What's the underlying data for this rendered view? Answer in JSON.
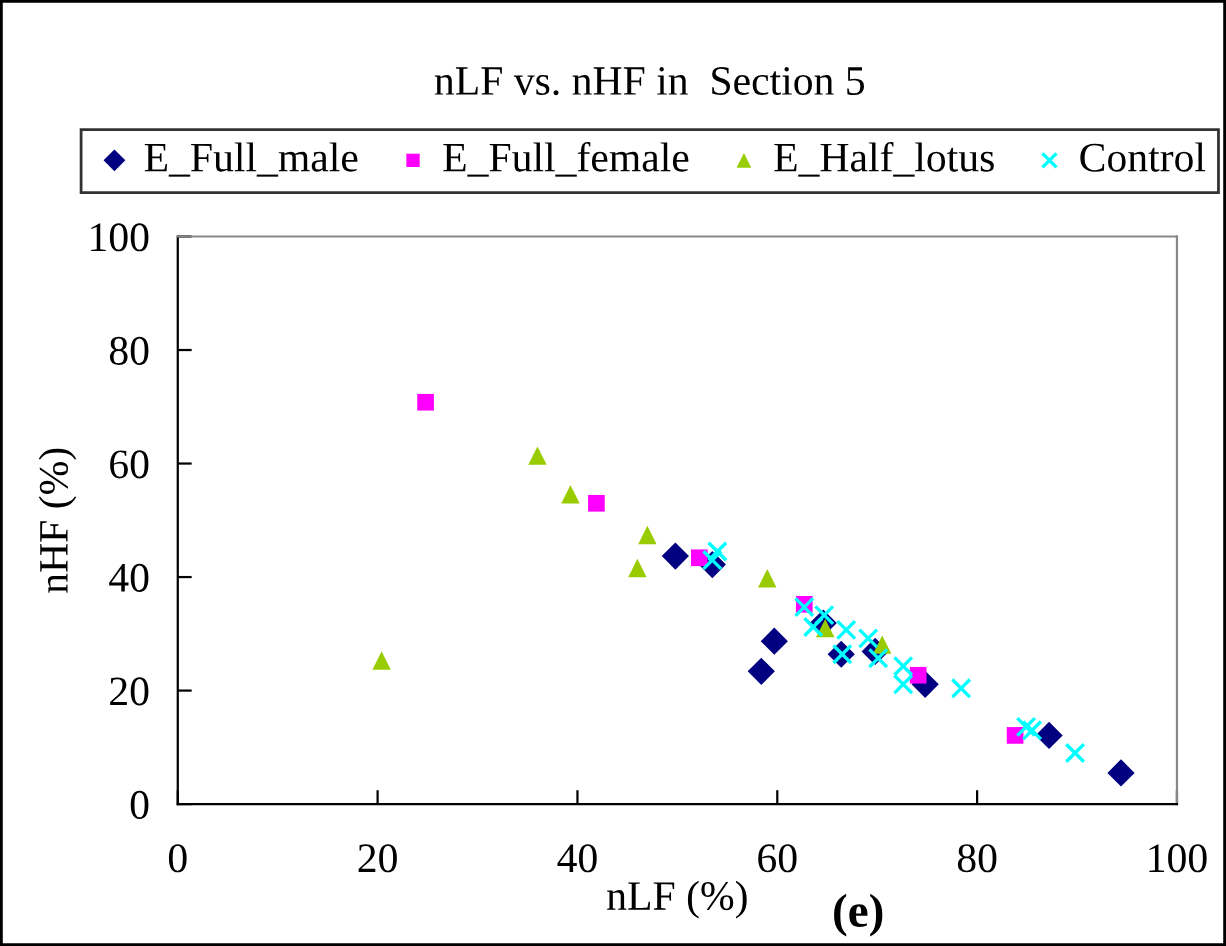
{
  "chart_data": {
    "type": "scatter",
    "title": "nLF vs. nHF in  Section 5",
    "xlabel": "nLF (%)",
    "ylabel": "nHF (%)",
    "annotations": [
      "(e)"
    ],
    "xlim": [
      0,
      100
    ],
    "ylim": [
      0,
      100
    ],
    "xticks": [
      0,
      20,
      40,
      60,
      80,
      100
    ],
    "yticks": [
      0,
      20,
      40,
      60,
      80,
      100
    ],
    "grid": false,
    "legend": "top",
    "series": [
      {
        "name": "E_Full_male",
        "color": "#000080",
        "marker": "diamond",
        "x": [
          49.8,
          53.5,
          59.7,
          58.4,
          64.6,
          66.4,
          69.8,
          74.8,
          87.2,
          94.4
        ],
        "values": [
          43.7,
          42.2,
          28.7,
          23.4,
          31.9,
          26.4,
          26.9,
          21.1,
          12.1,
          5.5
        ]
      },
      {
        "name": "E_Full_female",
        "color": "#ff00ff",
        "marker": "square",
        "x": [
          24.8,
          41.9,
          52.2,
          62.7,
          74.1,
          83.8
        ],
        "values": [
          70.8,
          53.0,
          43.4,
          35.2,
          22.7,
          12.1
        ]
      },
      {
        "name": "E_Half_lotus",
        "color": "#99cc00",
        "marker": "triangle",
        "x": [
          20.4,
          36.0,
          39.3,
          47.0,
          46.0,
          59.0,
          64.8,
          70.5
        ],
        "values": [
          25.3,
          61.4,
          54.6,
          47.4,
          41.6,
          39.8,
          31.0,
          28.1
        ]
      },
      {
        "name": "Control",
        "color": "#00ffff",
        "marker": "cross",
        "x": [
          54.0,
          53.5,
          62.7,
          64.7,
          63.6,
          66.9,
          66.5,
          69.1,
          70.1,
          72.6,
          72.6,
          78.4,
          84.9,
          85.5,
          89.8
        ],
        "values": [
          44.5,
          43.0,
          34.7,
          33.3,
          31.2,
          30.7,
          26.4,
          29.2,
          25.7,
          24.3,
          21.1,
          20.4,
          13.6,
          13.0,
          9.0
        ]
      }
    ]
  }
}
